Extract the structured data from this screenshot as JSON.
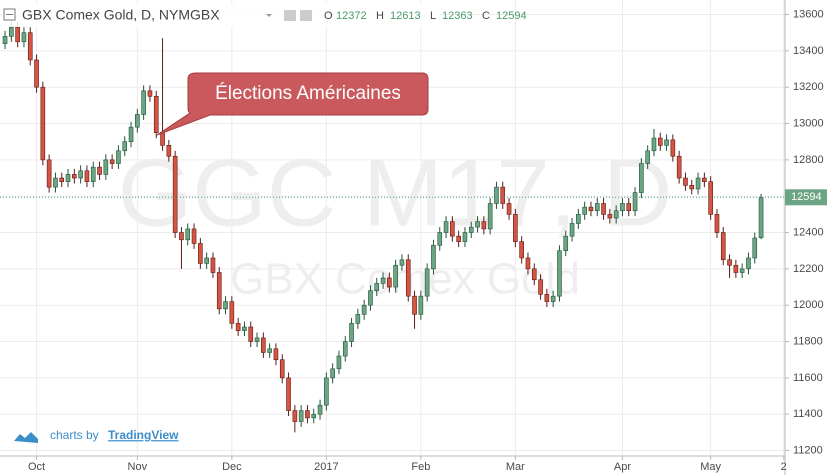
{
  "chart_data": {
    "type": "candlestick",
    "title": "GBX Comex Gold, D, NYMGBX",
    "ohlc_labels": [
      "O",
      "H",
      "L",
      "C"
    ],
    "watermark": "GGC M17, D",
    "watermark_subtitle": "GBX Comex Gold",
    "annotation": "Élections Américaines",
    "branding": {
      "prefix": "charts by",
      "name": "TradingView"
    },
    "up_color": "#6ba583",
    "down_color": "#d75442",
    "ylim": [
      11170,
      13680
    ],
    "yticks": [
      11200,
      11400,
      11600,
      11800,
      12000,
      12200,
      12400,
      12600,
      12800,
      13000,
      13200,
      13400,
      13600
    ],
    "xlim": [
      -0.8,
      123.8
    ],
    "xticks": [
      {
        "value": 5,
        "label": "Oct"
      },
      {
        "value": 21,
        "label": "Nov"
      },
      {
        "value": 36,
        "label": "Dec"
      },
      {
        "value": 51,
        "label": "2017"
      },
      {
        "value": 66,
        "label": "Feb"
      },
      {
        "value": 81,
        "label": "Mar"
      },
      {
        "value": 98,
        "label": "Apr"
      },
      {
        "value": 112,
        "label": "May"
      },
      {
        "value": 123.6,
        "label": "2"
      }
    ],
    "grid": true,
    "open": [
      13440,
      13480,
      13530,
      13450,
      13500,
      13350,
      13200,
      12800,
      12650,
      12700,
      12680,
      12720,
      12700,
      12740,
      12680,
      12760,
      12720,
      12800,
      12780,
      12850,
      12900,
      12980,
      13050,
      13180,
      13150,
      12950,
      12880,
      12820,
      12400,
      12360,
      12420,
      12340,
      12230,
      12260,
      12180,
      11980,
      12020,
      11900,
      11860,
      11880,
      11800,
      11820,
      11740,
      11760,
      11700,
      11600,
      11420,
      11360,
      11420,
      11380,
      11400,
      11450,
      11600,
      11650,
      11720,
      11800,
      11900,
      11950,
      12000,
      12080,
      12120,
      12150,
      12100,
      12220,
      12250,
      12050,
      11950,
      12050,
      12200,
      12330,
      12400,
      12460,
      12380,
      12350,
      12400,
      12430,
      12460,
      12420,
      12560,
      12650,
      12560,
      12500,
      12350,
      12260,
      12200,
      12140,
      12060,
      12020,
      12050,
      12300,
      12380,
      12450,
      12500,
      12540,
      12520,
      12560,
      12500,
      12480,
      12520,
      12560,
      12520,
      12620,
      12780,
      12850,
      12920,
      12880,
      12910,
      12820,
      12700,
      12660,
      12640,
      12700,
      12680,
      12500,
      12400,
      12250,
      12220,
      12180,
      12200,
      12260,
      12372
    ],
    "high": [
      13510,
      13560,
      13560,
      13530,
      13530,
      13380,
      13230,
      12830,
      12730,
      12730,
      12750,
      12750,
      12770,
      12770,
      12790,
      12790,
      12830,
      12830,
      12880,
      12930,
      13010,
      13080,
      13210,
      13210,
      13180,
      13470,
      12910,
      12850,
      12430,
      12450,
      12450,
      12370,
      12290,
      12290,
      12210,
      12050,
      12050,
      11930,
      11910,
      11910,
      11850,
      11850,
      11790,
      11790,
      11730,
      11630,
      11450,
      11450,
      11450,
      11430,
      11480,
      11630,
      11680,
      11750,
      11830,
      11930,
      11980,
      12030,
      12110,
      12150,
      12180,
      12180,
      12250,
      12280,
      12280,
      12080,
      12080,
      12230,
      12360,
      12430,
      12490,
      12490,
      12410,
      12430,
      12460,
      12490,
      12490,
      12590,
      12680,
      12680,
      12590,
      12530,
      12380,
      12290,
      12230,
      12170,
      12090,
      12080,
      12330,
      12410,
      12480,
      12530,
      12570,
      12570,
      12590,
      12590,
      12530,
      12550,
      12590,
      12590,
      12650,
      12810,
      12880,
      12970,
      12950,
      12940,
      12940,
      12850,
      12730,
      12690,
      12730,
      12730,
      12710,
      12530,
      12430,
      12280,
      12250,
      12230,
      12290,
      12400,
      12613
    ],
    "low": [
      13410,
      13450,
      13420,
      13420,
      13320,
      13170,
      12770,
      12620,
      12620,
      12650,
      12650,
      12670,
      12670,
      12650,
      12650,
      12690,
      12690,
      12750,
      12750,
      12820,
      12870,
      12950,
      13020,
      13120,
      12920,
      12850,
      12790,
      12370,
      12200,
      12330,
      12310,
      12200,
      12200,
      12150,
      11950,
      11950,
      11870,
      11830,
      11830,
      11770,
      11770,
      11710,
      11710,
      11670,
      11570,
      11390,
      11300,
      11330,
      11350,
      11350,
      11370,
      11420,
      11570,
      11620,
      11690,
      11770,
      11870,
      11920,
      11970,
      12050,
      12090,
      12070,
      12070,
      12190,
      12020,
      11870,
      11920,
      12020,
      12170,
      12300,
      12370,
      12350,
      12320,
      12320,
      12370,
      12400,
      12390,
      12390,
      12530,
      12530,
      12470,
      12320,
      12230,
      12170,
      12110,
      12030,
      11990,
      11990,
      12020,
      12270,
      12350,
      12420,
      12470,
      12490,
      12490,
      12470,
      12450,
      12450,
      12490,
      12490,
      12490,
      12590,
      12750,
      12820,
      12850,
      12850,
      12790,
      12670,
      12630,
      12610,
      12610,
      12650,
      12470,
      12370,
      12220,
      12150,
      12150,
      12150,
      12170,
      12230,
      12363
    ],
    "close": [
      13480,
      13530,
      13450,
      13500,
      13350,
      13200,
      12800,
      12650,
      12700,
      12680,
      12720,
      12700,
      12740,
      12680,
      12760,
      12720,
      12800,
      12780,
      12850,
      12900,
      12980,
      13050,
      13180,
      13150,
      12950,
      12880,
      12820,
      12400,
      12360,
      12420,
      12340,
      12230,
      12260,
      12180,
      11980,
      12020,
      11900,
      11860,
      11880,
      11800,
      11820,
      11740,
      11760,
      11700,
      11600,
      11420,
      11360,
      11420,
      11380,
      11400,
      11450,
      11600,
      11650,
      11720,
      11800,
      11900,
      11950,
      12000,
      12080,
      12120,
      12150,
      12100,
      12220,
      12250,
      12050,
      11950,
      12050,
      12200,
      12330,
      12400,
      12460,
      12380,
      12350,
      12400,
      12430,
      12460,
      12420,
      12560,
      12650,
      12560,
      12500,
      12350,
      12260,
      12200,
      12140,
      12060,
      12020,
      12050,
      12300,
      12380,
      12450,
      12500,
      12540,
      12520,
      12560,
      12500,
      12480,
      12520,
      12560,
      12520,
      12620,
      12780,
      12850,
      12920,
      12880,
      12910,
      12820,
      12700,
      12660,
      12640,
      12700,
      12680,
      12500,
      12400,
      12250,
      12220,
      12180,
      12200,
      12260,
      12370,
      12594
    ]
  }
}
